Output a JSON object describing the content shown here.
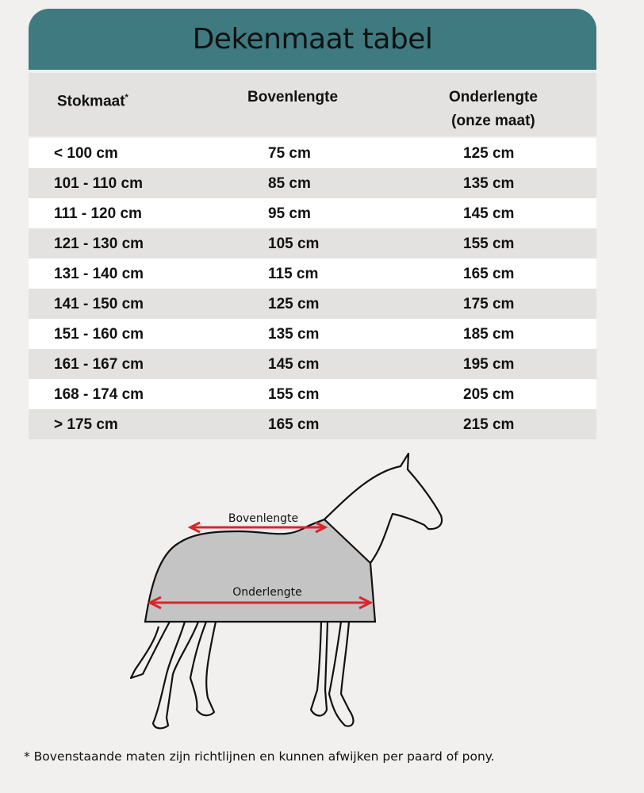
{
  "title": "Dekenmaat tabel",
  "headers": {
    "col1": "Stokmaat",
    "col1_mark": "*",
    "col2": "Bovenlengte",
    "col3_line1": "Onderlengte",
    "col3_line2": "(onze maat)"
  },
  "rows": [
    [
      "< 100 cm",
      "75 cm",
      "125 cm"
    ],
    [
      "101 - 110 cm",
      "85 cm",
      "135 cm"
    ],
    [
      "111 - 120 cm",
      "95 cm",
      "145 cm"
    ],
    [
      "121 - 130 cm",
      "105 cm",
      "155 cm"
    ],
    [
      "131 - 140 cm",
      "115 cm",
      "165 cm"
    ],
    [
      "141 - 150 cm",
      "125 cm",
      "175 cm"
    ],
    [
      "151 - 160 cm",
      "135 cm",
      "185 cm"
    ],
    [
      "161 - 167 cm",
      "145 cm",
      "195 cm"
    ],
    [
      "168 - 174 cm",
      "155 cm",
      "205 cm"
    ],
    [
      "> 175 cm",
      "165 cm",
      "215 cm"
    ]
  ],
  "diagram": {
    "top_label": "Bovenlengte",
    "bottom_label": "Onderlengte"
  },
  "footnote": "* Bovenstaande maten zijn richtlijnen en kunnen afwijken per paard of pony.",
  "colors": {
    "header": "#3f7a80",
    "arrow": "#d9262b",
    "blanket": "#c4c4c4"
  }
}
